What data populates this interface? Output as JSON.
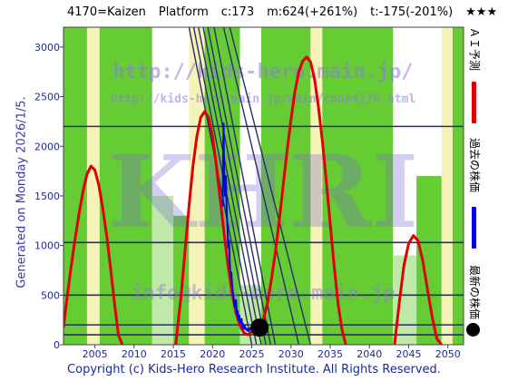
{
  "header": {
    "code_name": "4170=Kaizen",
    "market": "Platform",
    "current": "c:173",
    "max_text": "m:624(+261%)",
    "min_text": "t:-175(-201%)",
    "stars": "★★★"
  },
  "footer": {
    "copyright": "Copyright (c) Kids-Hero Research Institute. All Rights Reserved."
  },
  "side_note": "Generated on Monday 2026/1/5.",
  "watermarks": {
    "url1": "http://kids-hero.main.jp/",
    "url2": "http://kids-hero.main.jp/main/code4170.html",
    "logo": "KHRI",
    "url3": "info@kids-hero.main.jp"
  },
  "legend": {
    "forecast": "ＡＩ予測",
    "past": "過去の株価",
    "latest": "最新の株価"
  },
  "colors": {
    "forecast": "#e00000",
    "past": "#0000ee",
    "latest": "#000000",
    "band_green": "#66cc33",
    "band_light": "#bfe9a8",
    "band_yellow": "#f6f3b8",
    "hline": "#2b2b6e",
    "trend": "#2b2b6e",
    "axis_text": "#1a2a9a"
  },
  "chart_data": {
    "type": "line",
    "title": "",
    "xlabel": "",
    "ylabel": "",
    "xlim": [
      2001,
      2052
    ],
    "ylim": [
      0,
      3200
    ],
    "x_ticks": [
      2005,
      2010,
      2015,
      2020,
      2025,
      2030,
      2035,
      2040,
      2045,
      2050
    ],
    "y_ticks": [
      0,
      500,
      1000,
      1500,
      2000,
      2500,
      3000
    ],
    "reference_lines": [
      100,
      200,
      500,
      1030,
      2200
    ],
    "series": [
      {
        "name": "ＡＩ予測",
        "role": "forecast",
        "x": [
          2001,
          2001.5,
          2002,
          2002.5,
          2003,
          2003.5,
          2004,
          2004.5,
          2005,
          2005.5,
          2006,
          2006.5,
          2007,
          2007.5,
          2008,
          2008.5
        ],
        "y": [
          180,
          500,
          800,
          1080,
          1330,
          1550,
          1720,
          1800,
          1760,
          1610,
          1380,
          1100,
          770,
          420,
          100,
          0
        ]
      },
      {
        "name": "",
        "role": "forecast",
        "x": [
          2015.3,
          2016,
          2016.5,
          2017,
          2017.5,
          2018,
          2018.5,
          2019,
          2019.5,
          2020,
          2020.5,
          2021,
          2021.5,
          2022,
          2022.5,
          2023,
          2023.5,
          2024,
          2024.5,
          2025
        ],
        "y": [
          0,
          500,
          950,
          1400,
          1800,
          2100,
          2290,
          2350,
          2290,
          2100,
          1800,
          1450,
          1100,
          780,
          520,
          320,
          190,
          120,
          100,
          130
        ]
      },
      {
        "name": "",
        "role": "forecast",
        "x": [
          2025,
          2025.5,
          2026,
          2026.5,
          2027,
          2027.5,
          2028,
          2028.5,
          2029,
          2029.5,
          2030,
          2030.5,
          2031,
          2031.5,
          2032,
          2032.5,
          2033,
          2033.5,
          2034,
          2034.5,
          2035,
          2035.5,
          2036,
          2036.5,
          2037
        ],
        "y": [
          130,
          160,
          190,
          260,
          420,
          650,
          930,
          1250,
          1600,
          1950,
          2270,
          2550,
          2750,
          2860,
          2900,
          2850,
          2680,
          2400,
          2050,
          1650,
          1220,
          800,
          420,
          150,
          0
        ]
      },
      {
        "name": "",
        "role": "forecast",
        "x": [
          2043.2,
          2043.8,
          2044.4,
          2045,
          2045.6,
          2046.2,
          2046.8,
          2047.4,
          2048,
          2048.6,
          2049.2
        ],
        "y": [
          0,
          420,
          800,
          1020,
          1100,
          1050,
          850,
          560,
          280,
          60,
          0
        ]
      },
      {
        "name": "過去の株価",
        "role": "past",
        "x": [
          2021.3,
          2021.4,
          2021.5,
          2021.6,
          2021.7,
          2021.8,
          2021.9,
          2022.0,
          2022.1,
          2022.2,
          2022.3,
          2022.4,
          2022.5,
          2022.6,
          2022.7,
          2022.8,
          2022.9,
          2023.0,
          2023.1,
          2023.2,
          2023.3,
          2023.4,
          2023.5,
          2023.6,
          2023.7,
          2023.8,
          2023.9,
          2024.0,
          2024.1,
          2024.2,
          2024.3,
          2024.4,
          2024.5,
          2024.6,
          2024.7,
          2024.8,
          2024.9,
          2025.0,
          2025.1,
          2025.3,
          2025.5,
          2025.7,
          2025.9
        ],
        "y": [
          1400,
          2230,
          1650,
          1500,
          1700,
          1350,
          1200,
          980,
          1050,
          820,
          680,
          730,
          600,
          520,
          470,
          380,
          420,
          450,
          310,
          340,
          250,
          300,
          240,
          220,
          260,
          180,
          210,
          160,
          190,
          170,
          150,
          160,
          140,
          160,
          150,
          170,
          150,
          160,
          150,
          165,
          170,
          172,
          173
        ]
      }
    ],
    "latest_point": {
      "x": 2026.0,
      "y": 173
    },
    "trend_lines": [
      {
        "x1": 2017.0,
        "y1": 3200,
        "x2": 2025.0,
        "y2": 0
      },
      {
        "x1": 2017.6,
        "y1": 3200,
        "x2": 2025.6,
        "y2": 0
      },
      {
        "x1": 2018.2,
        "y1": 3200,
        "x2": 2026.2,
        "y2": 0
      },
      {
        "x1": 2018.8,
        "y1": 3200,
        "x2": 2026.8,
        "y2": 0
      },
      {
        "x1": 2019.4,
        "y1": 3200,
        "x2": 2027.4,
        "y2": 0
      },
      {
        "x1": 2020.2,
        "y1": 3200,
        "x2": 2028.0,
        "y2": 0
      },
      {
        "x1": 2021.4,
        "y1": 3200,
        "x2": 2031.0,
        "y2": 0
      },
      {
        "x1": 2022.2,
        "y1": 3200,
        "x2": 2032.5,
        "y2": 0
      }
    ],
    "bands": [
      {
        "x0": 2001,
        "x1": 2004,
        "top": 3200,
        "fill": "band_green"
      },
      {
        "x0": 2004,
        "x1": 2005.6,
        "top": 3200,
        "fill": "band_yellow"
      },
      {
        "x0": 2005.6,
        "x1": 2012.3,
        "top": 3200,
        "fill": "band_green"
      },
      {
        "x0": 2012.3,
        "x1": 2015,
        "top": 1500,
        "fill": "band_light"
      },
      {
        "x0": 2015,
        "x1": 2017,
        "top": 1300,
        "fill": "band_green"
      },
      {
        "x0": 2017,
        "x1": 2019,
        "top": 3200,
        "fill": "band_yellow"
      },
      {
        "x0": 2019,
        "x1": 2023.5,
        "top": 3200,
        "fill": "band_green"
      },
      {
        "x0": 2023.5,
        "x1": 2026.2,
        "top": 600,
        "fill": "band_light"
      },
      {
        "x0": 2026.2,
        "x1": 2032.5,
        "top": 3200,
        "fill": "band_green"
      },
      {
        "x0": 2032.5,
        "x1": 2034,
        "top": 3200,
        "fill": "band_yellow"
      },
      {
        "x0": 2034,
        "x1": 2043,
        "top": 3200,
        "fill": "band_green"
      },
      {
        "x0": 2043,
        "x1": 2046,
        "top": 900,
        "fill": "band_light"
      },
      {
        "x0": 2046,
        "x1": 2049.2,
        "top": 1700,
        "fill": "band_green"
      },
      {
        "x0": 2049.2,
        "x1": 2050.6,
        "top": 3200,
        "fill": "band_yellow"
      },
      {
        "x0": 2050.6,
        "x1": 2052,
        "top": 3200,
        "fill": "band_green"
      }
    ]
  }
}
